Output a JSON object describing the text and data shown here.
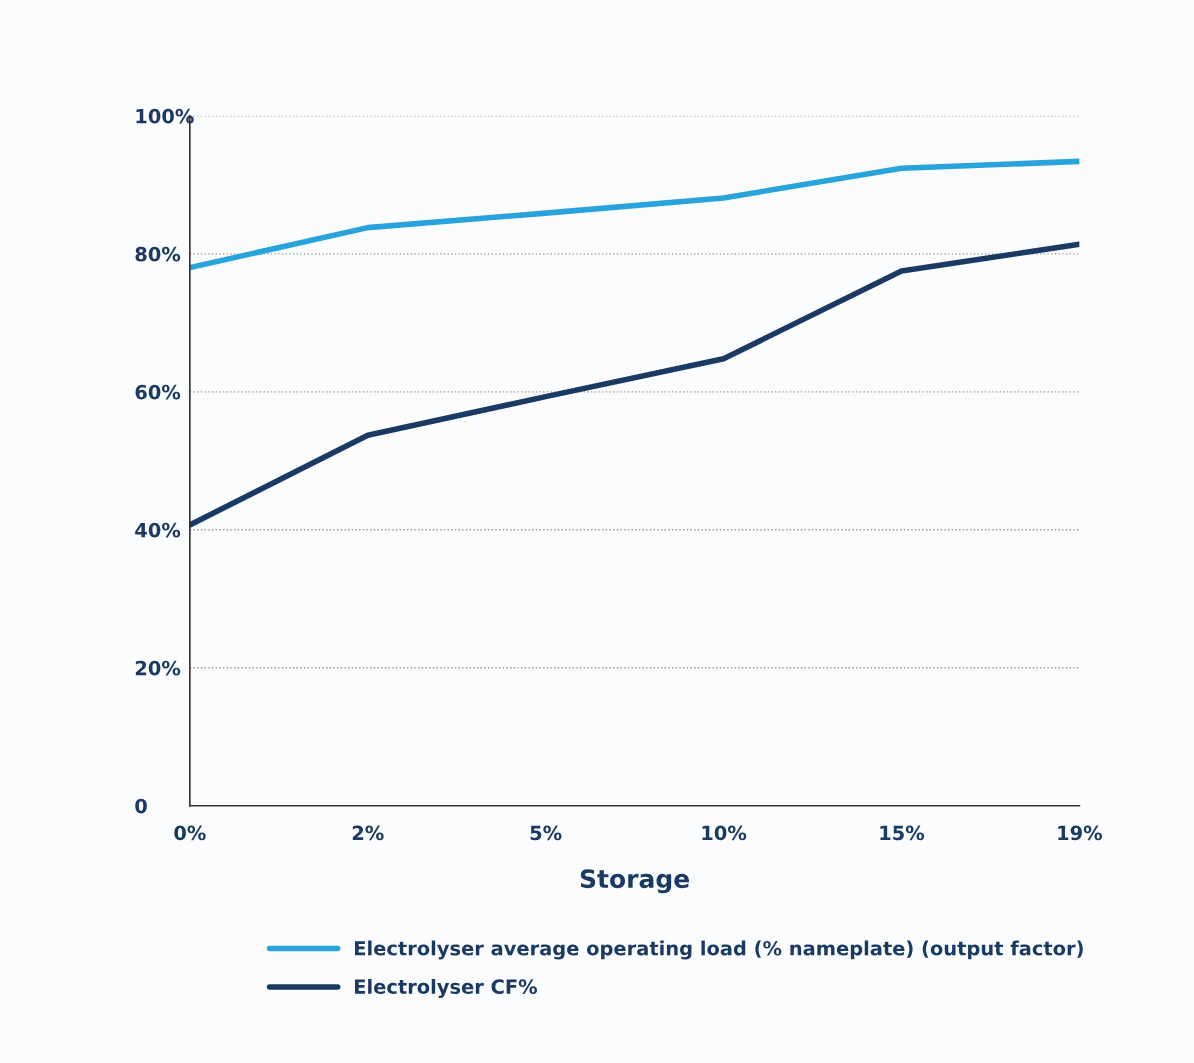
{
  "chart_data": {
    "type": "line",
    "xlabel": "Storage",
    "categories": [
      "0%",
      "2%",
      "5%",
      "10%",
      "15%",
      "19%"
    ],
    "series": [
      {
        "name": "Electrolyser average operating load (% nameplate) (output factor)",
        "color": "#29a3dc",
        "values": [
          78.0,
          83.8,
          85.9,
          88.1,
          92.4,
          93.4
        ]
      },
      {
        "name": "Electrolyser CF%",
        "color": "#1b3a63",
        "values": [
          40.7,
          53.7,
          59.3,
          64.8,
          77.5,
          81.4
        ]
      }
    ],
    "ylim": [
      0,
      100
    ],
    "yticks": [
      {
        "value": 0,
        "label": "0"
      },
      {
        "value": 20,
        "label": "20%"
      },
      {
        "value": 40,
        "label": "40%"
      },
      {
        "value": 60,
        "label": "60%"
      },
      {
        "value": 80,
        "label": "80%"
      },
      {
        "value": 100,
        "label": "100%"
      }
    ],
    "grid": "y",
    "legend": "bottom",
    "marker": "none",
    "line_style": "solid"
  }
}
